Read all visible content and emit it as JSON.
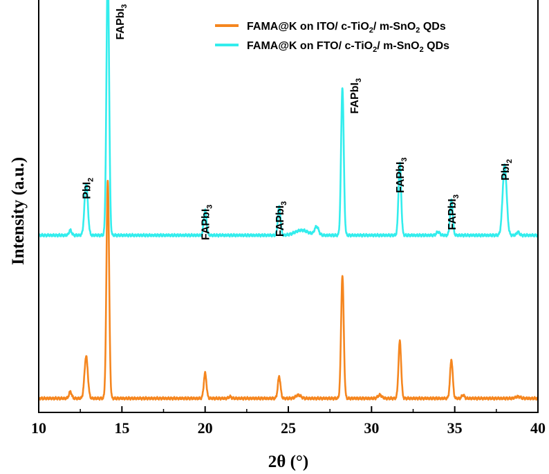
{
  "chart_data": {
    "type": "line",
    "title": "",
    "xlabel": "2θ (°)",
    "ylabel": "Intensity (a.u.)",
    "xlim": [
      10,
      40
    ],
    "xticks": [
      "10",
      "15",
      "20",
      "25",
      "30",
      "35",
      "40"
    ],
    "y_ticks_shown": false,
    "legend": "top-right",
    "series": [
      {
        "name": "FAMA@K on ITO/ c-TiO2/ m-SnO2 QDs",
        "color": "#F5861F",
        "baseline": 0.03,
        "peaks": [
          {
            "x": 11.9,
            "h": 0.04,
            "w": 0.08
          },
          {
            "x": 12.85,
            "h": 0.25,
            "w": 0.1
          },
          {
            "x": 14.15,
            "h": 1.3,
            "w": 0.08
          },
          {
            "x": 20.0,
            "h": 0.15,
            "w": 0.08
          },
          {
            "x": 21.5,
            "h": 0.01,
            "w": 0.08
          },
          {
            "x": 24.45,
            "h": 0.13,
            "w": 0.08
          },
          {
            "x": 25.6,
            "h": 0.02,
            "w": 0.15
          },
          {
            "x": 28.25,
            "h": 0.73,
            "w": 0.08
          },
          {
            "x": 30.5,
            "h": 0.02,
            "w": 0.12
          },
          {
            "x": 31.7,
            "h": 0.34,
            "w": 0.08
          },
          {
            "x": 34.8,
            "h": 0.23,
            "w": 0.08
          },
          {
            "x": 35.5,
            "h": 0.02,
            "w": 0.08
          },
          {
            "x": 38.8,
            "h": 0.01,
            "w": 0.15
          }
        ]
      },
      {
        "name": "FAMA@K on FTO/ c-TiO2/ m-SnO2 QDs",
        "color": "#33EDED",
        "baseline": 1.0,
        "peaks": [
          {
            "x": 11.9,
            "h": 0.03,
            "w": 0.08
          },
          {
            "x": 12.85,
            "h": 0.31,
            "w": 0.1
          },
          {
            "x": 14.15,
            "h": 1.6,
            "w": 0.08
          },
          {
            "x": 20.0,
            "h": 0.15,
            "w": 0.08
          },
          {
            "x": 24.45,
            "h": 0.17,
            "w": 0.08
          },
          {
            "x": 25.8,
            "h": 0.03,
            "w": 0.4
          },
          {
            "x": 26.7,
            "h": 0.05,
            "w": 0.12
          },
          {
            "x": 28.25,
            "h": 0.88,
            "w": 0.08
          },
          {
            "x": 31.7,
            "h": 0.43,
            "w": 0.08
          },
          {
            "x": 34.0,
            "h": 0.02,
            "w": 0.1
          },
          {
            "x": 34.8,
            "h": 0.21,
            "w": 0.08
          },
          {
            "x": 38.0,
            "h": 0.42,
            "w": 0.12
          },
          {
            "x": 38.8,
            "h": 0.02,
            "w": 0.08
          }
        ]
      }
    ],
    "peak_labels": [
      {
        "base": "PbI",
        "sub": "2",
        "x": 12.85
      },
      {
        "base": "FAPbI",
        "sub": "3",
        "x": 14.15
      },
      {
        "base": "FAPbI",
        "sub": "3",
        "x": 20.0
      },
      {
        "base": "FAPbI",
        "sub": "3",
        "x": 24.45
      },
      {
        "base": "FAPbI",
        "sub": "3",
        "x": 28.25
      },
      {
        "base": "FAPbI",
        "sub": "3",
        "x": 31.7
      },
      {
        "base": "FAPbI",
        "sub": "3",
        "x": 34.8
      },
      {
        "base": "PbI",
        "sub": "2",
        "x": 38.0
      }
    ],
    "legend_entries": [
      {
        "prefix": "FAMA@K on ITO/ c-TiO",
        "sub1": "2",
        "middle": "/ m-SnO",
        "sub2": "2",
        "suffix": " QDs",
        "color": "#F5861F"
      },
      {
        "prefix": "FAMA@K on FTO/ c-TiO",
        "sub1": "2",
        "middle": "/ m-SnO",
        "sub2": "2",
        "suffix": " QDs",
        "color": "#33EDED"
      }
    ]
  }
}
